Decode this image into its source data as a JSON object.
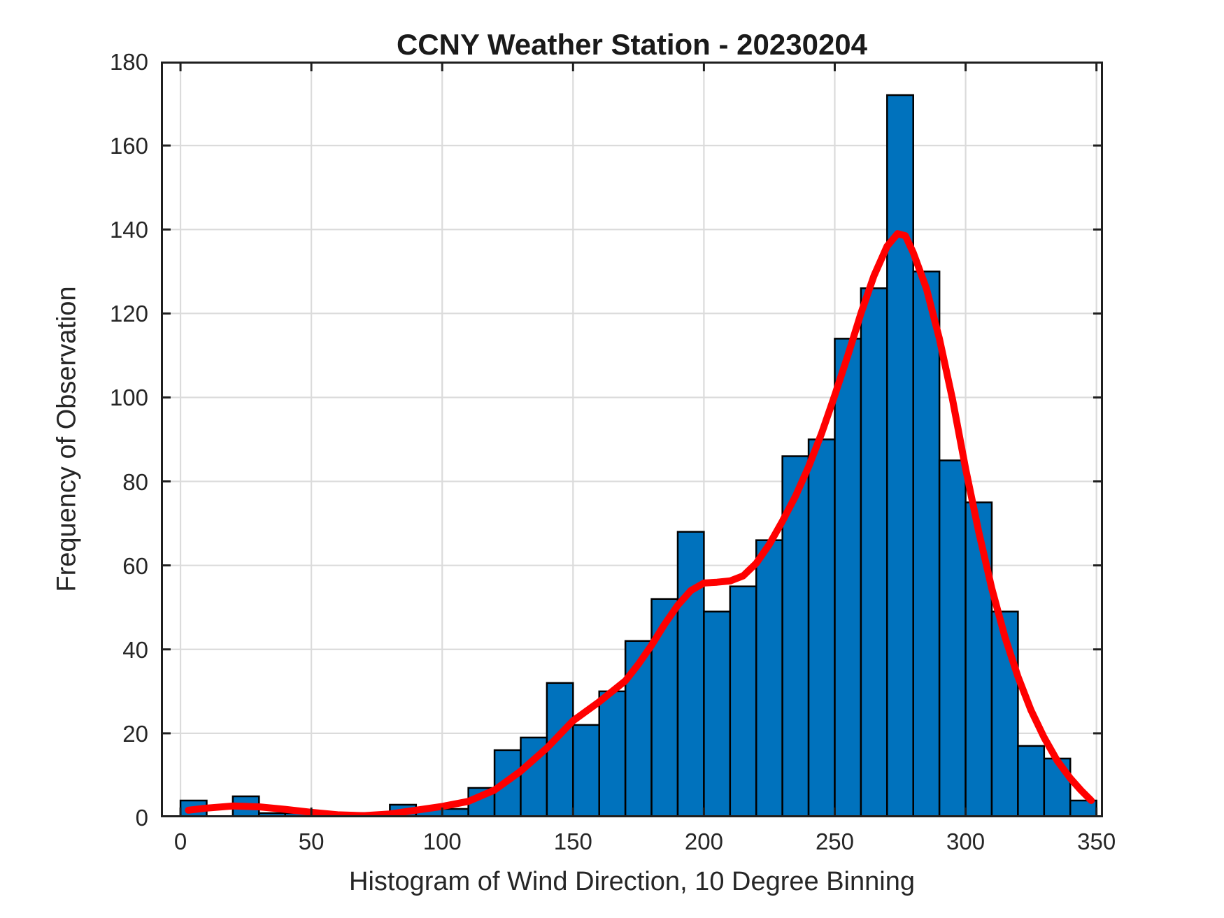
{
  "figure": {
    "title": "CCNY Weather Station - 20230204",
    "x_axis_label": "Histogram of Wind Direction, 10 Degree Binning",
    "y_axis_label": "Frequency of Observation"
  },
  "chart_data": {
    "type": "bar",
    "subtype": "histogram-with-density-curve",
    "title": "CCNY Weather Station - 20230204",
    "xlabel": "Histogram of Wind Direction, 10 Degree Binning",
    "ylabel": "Frequency of Observation",
    "bin_width_degrees": 10,
    "bin_edges": [
      0,
      10,
      20,
      30,
      40,
      50,
      60,
      70,
      80,
      90,
      100,
      110,
      120,
      130,
      140,
      150,
      160,
      170,
      180,
      190,
      200,
      210,
      220,
      230,
      240,
      250,
      260,
      270,
      280,
      290,
      300,
      310,
      320,
      330,
      340,
      350
    ],
    "values": [
      4,
      0,
      5,
      1,
      1,
      1,
      1,
      0,
      3,
      2,
      2,
      7,
      16,
      19,
      32,
      22,
      30,
      42,
      52,
      68,
      49,
      55,
      66,
      86,
      90,
      114,
      126,
      172,
      130,
      85,
      75,
      49,
      17,
      14,
      4
    ],
    "curve": {
      "name": "smoothed-density-fit-line",
      "color": "#FF0000",
      "points": [
        [
          3,
          1.7
        ],
        [
          10,
          2.2
        ],
        [
          20,
          2.7
        ],
        [
          30,
          2.5
        ],
        [
          40,
          1.9
        ],
        [
          50,
          1.2
        ],
        [
          60,
          0.6
        ],
        [
          70,
          0.4
        ],
        [
          80,
          0.8
        ],
        [
          90,
          1.7
        ],
        [
          100,
          2.6
        ],
        [
          110,
          3.8
        ],
        [
          120,
          6.5
        ],
        [
          130,
          11
        ],
        [
          140,
          16.5
        ],
        [
          150,
          23
        ],
        [
          160,
          27.5
        ],
        [
          170,
          32.5
        ],
        [
          175,
          36.5
        ],
        [
          180,
          41
        ],
        [
          185,
          46
        ],
        [
          190,
          50.5
        ],
        [
          195,
          54
        ],
        [
          200,
          55.8
        ],
        [
          205,
          56
        ],
        [
          210,
          56.3
        ],
        [
          215,
          57.5
        ],
        [
          220,
          60.5
        ],
        [
          225,
          65
        ],
        [
          230,
          70.5
        ],
        [
          235,
          76.5
        ],
        [
          240,
          83.5
        ],
        [
          245,
          91.5
        ],
        [
          250,
          100.5
        ],
        [
          255,
          110
        ],
        [
          260,
          120
        ],
        [
          265,
          129
        ],
        [
          270,
          136
        ],
        [
          274,
          139
        ],
        [
          277,
          138.5
        ],
        [
          280,
          134.5
        ],
        [
          285,
          126
        ],
        [
          290,
          114
        ],
        [
          295,
          99.5
        ],
        [
          300,
          83
        ],
        [
          305,
          68
        ],
        [
          310,
          54.5
        ],
        [
          315,
          43
        ],
        [
          320,
          33.5
        ],
        [
          325,
          25.5
        ],
        [
          330,
          19
        ],
        [
          335,
          13.5
        ],
        [
          340,
          9.3
        ],
        [
          344,
          6.5
        ],
        [
          348,
          4
        ]
      ]
    },
    "xlim": [
      -7.5,
      352.5
    ],
    "ylim": [
      0,
      180
    ],
    "x_ticks": [
      0,
      50,
      100,
      150,
      200,
      250,
      300,
      350
    ],
    "y_ticks": [
      0,
      20,
      40,
      60,
      80,
      100,
      120,
      140,
      160,
      180
    ],
    "grid": true,
    "legend": null,
    "colors": {
      "bar_fill": "#0072BD",
      "bar_edge": "#000000",
      "curve": "#FF0000",
      "grid": "#DBDBDB",
      "axis": "#1f1f1f",
      "background": "#FFFFFF"
    }
  }
}
